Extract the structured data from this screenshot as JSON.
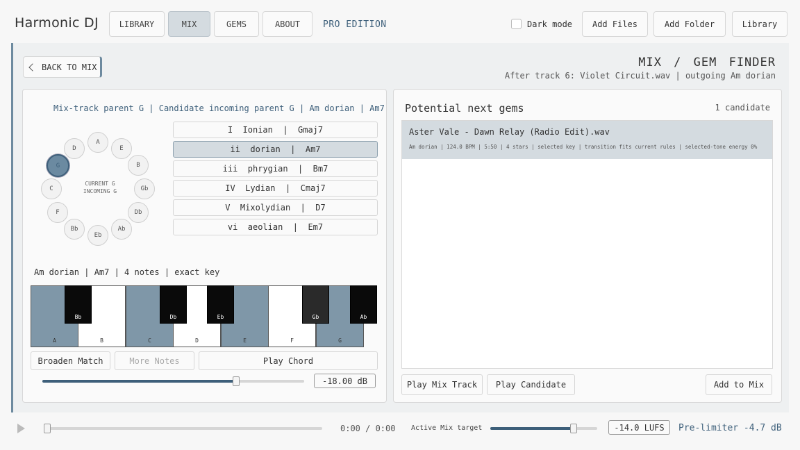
{
  "app": {
    "logo": "Harmonic DJ",
    "edition": "PRO EDITION"
  },
  "nav": {
    "tabs": [
      {
        "label": "LIBRARY",
        "active": false
      },
      {
        "label": "MIX",
        "active": true
      },
      {
        "label": "GEMS",
        "active": false
      },
      {
        "label": "ABOUT",
        "active": false
      }
    ]
  },
  "toolbar": {
    "dark_mode_label": "Dark mode",
    "dark_mode_checked": false,
    "add_files": "Add Files",
    "add_folder": "Add Folder",
    "library": "Library"
  },
  "header": {
    "back_label": "BACK TO MIX",
    "title": "MIX / GEM FINDER",
    "subtitle": "After track 6: Violet Circuit.wav | outgoing Am dorian"
  },
  "left": {
    "parent_line": "Mix-track parent G | Candidate incoming parent G | Am dorian | Am7",
    "circle": {
      "nodes": [
        "A",
        "E",
        "B",
        "Gb",
        "Db",
        "Ab",
        "Eb",
        "Bb",
        "F",
        "C",
        "G",
        "D"
      ],
      "selected": "G",
      "center_line1": "CURRENT G",
      "center_line2": "INCOMING G"
    },
    "modes": [
      {
        "label": "I  Ionian  |  Gmaj7",
        "active": false
      },
      {
        "label": "ii  dorian  |  Am7",
        "active": true
      },
      {
        "label": "iii  phrygian  |  Bm7",
        "active": false
      },
      {
        "label": "IV  Lydian  |  Cmaj7",
        "active": false
      },
      {
        "label": "V  Mixolydian  |  D7",
        "active": false
      },
      {
        "label": "vi  aeolian  |  Em7",
        "active": false
      }
    ],
    "key_info": "Am dorian | Am7 | 4 notes | exact key",
    "white_keys": [
      {
        "note": "A",
        "on": true
      },
      {
        "note": "B",
        "on": false
      },
      {
        "note": "C",
        "on": true
      },
      {
        "note": "D",
        "on": false
      },
      {
        "note": "E",
        "on": true
      },
      {
        "note": "F",
        "on": false
      },
      {
        "note": "G",
        "on": true
      }
    ],
    "black_keys": [
      {
        "note": "Bb",
        "dim": false
      },
      {
        "note": "Db",
        "dim": false
      },
      {
        "note": "Eb",
        "dim": false
      },
      {
        "note": "Gb",
        "dim": true
      },
      {
        "note": "Ab",
        "dim": false
      }
    ],
    "broaden": "Broaden Match",
    "more_notes": "More Notes",
    "play_chord": "Play Chord",
    "gain_value": "-18.00 dB",
    "gain_level": 0.74
  },
  "right": {
    "title": "Potential next gems",
    "count": "1 candidate",
    "candidates": [
      {
        "name": "Aster Vale - Dawn Relay (Radio Edit).wav",
        "meta": "Am dorian | 124.0 BPM | 5:50 | 4 stars | selected key | transition fits current rules | selected-tone energy 0%"
      }
    ],
    "play_mix": "Play Mix Track",
    "play_candidate": "Play Candidate",
    "add_to_mix": "Add to Mix"
  },
  "footer": {
    "time": "0:00 / 0:00",
    "target_label": "Active Mix target",
    "progress": 0.0,
    "target_level": 0.78,
    "lufs": "-14.0 LUFS",
    "prelimiter": "Pre-limiter -4.7 dB"
  }
}
